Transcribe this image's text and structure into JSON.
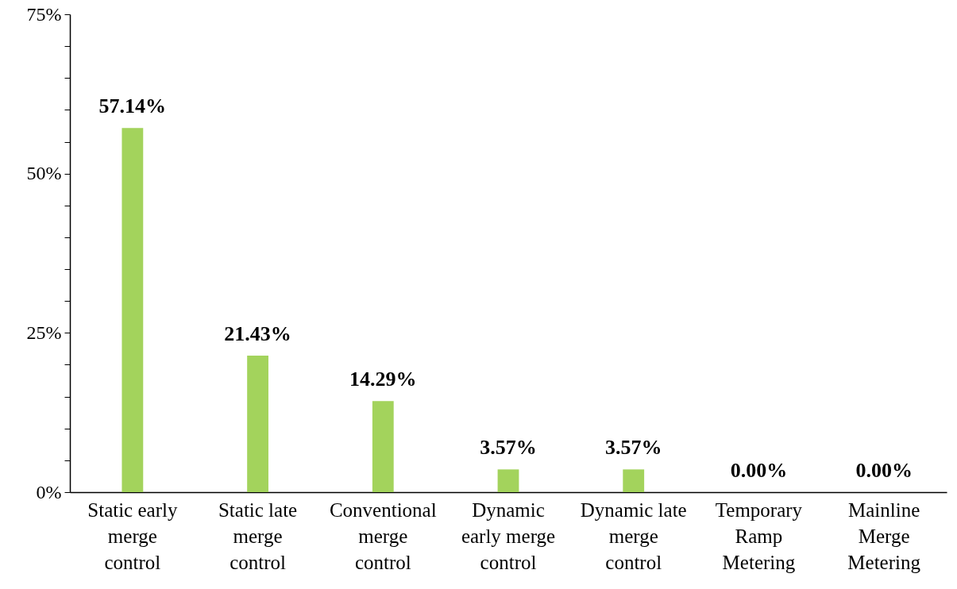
{
  "chart_data": {
    "type": "bar",
    "categories": [
      "Static early merge control",
      "Static late merge control",
      "Conventional merge control",
      "Dynamic early merge control",
      "Dynamic late merge control",
      "Temporary Ramp Metering",
      "Mainline Merge Metering"
    ],
    "values": [
      57.14,
      21.43,
      14.29,
      3.57,
      3.57,
      0,
      0
    ],
    "value_labels": [
      "57.14%",
      "21.43%",
      "14.29%",
      "3.57%",
      "3.57%",
      "0.00%",
      "0.00%"
    ],
    "color": "#a3d35c",
    "ylim": [
      0,
      75
    ],
    "yticks": [
      {
        "value": 0,
        "label": "0%"
      },
      {
        "value": 5,
        "label": null
      },
      {
        "value": 10,
        "label": null
      },
      {
        "value": 15,
        "label": null
      },
      {
        "value": 20,
        "label": null
      },
      {
        "value": 25,
        "label": "25%"
      },
      {
        "value": 30,
        "label": null
      },
      {
        "value": 35,
        "label": null
      },
      {
        "value": 40,
        "label": null
      },
      {
        "value": 45,
        "label": null
      },
      {
        "value": 50,
        "label": "50%"
      },
      {
        "value": 55,
        "label": null
      },
      {
        "value": 60,
        "label": null
      },
      {
        "value": 65,
        "label": null
      },
      {
        "value": 70,
        "label": null
      },
      {
        "value": 75,
        "label": "75%"
      }
    ],
    "grid": false
  }
}
